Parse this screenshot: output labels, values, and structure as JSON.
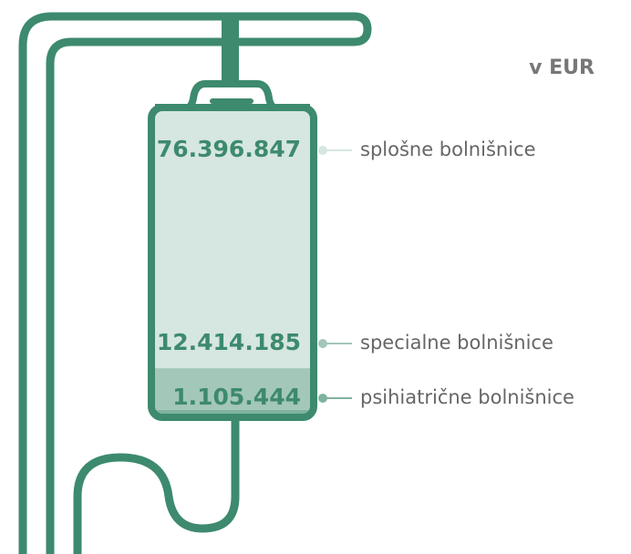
{
  "chart_data": {
    "type": "stacked_bar",
    "unit": "v EUR",
    "series": [
      {
        "name": "psihiatrične bolnišnice",
        "color": "#7fb39f",
        "values": [
          1105444
        ],
        "value_labels": [
          "1.105.444"
        ]
      },
      {
        "name": "specialne bolnišnice",
        "color": "#a3c7b8",
        "values": [
          12414185
        ],
        "value_labels": [
          "12.414.185"
        ]
      },
      {
        "name": "splošne bolnišnice",
        "color": "#d6e6e0",
        "values": [
          76396847
        ],
        "value_labels": [
          "76.396.847"
        ]
      }
    ]
  }
}
